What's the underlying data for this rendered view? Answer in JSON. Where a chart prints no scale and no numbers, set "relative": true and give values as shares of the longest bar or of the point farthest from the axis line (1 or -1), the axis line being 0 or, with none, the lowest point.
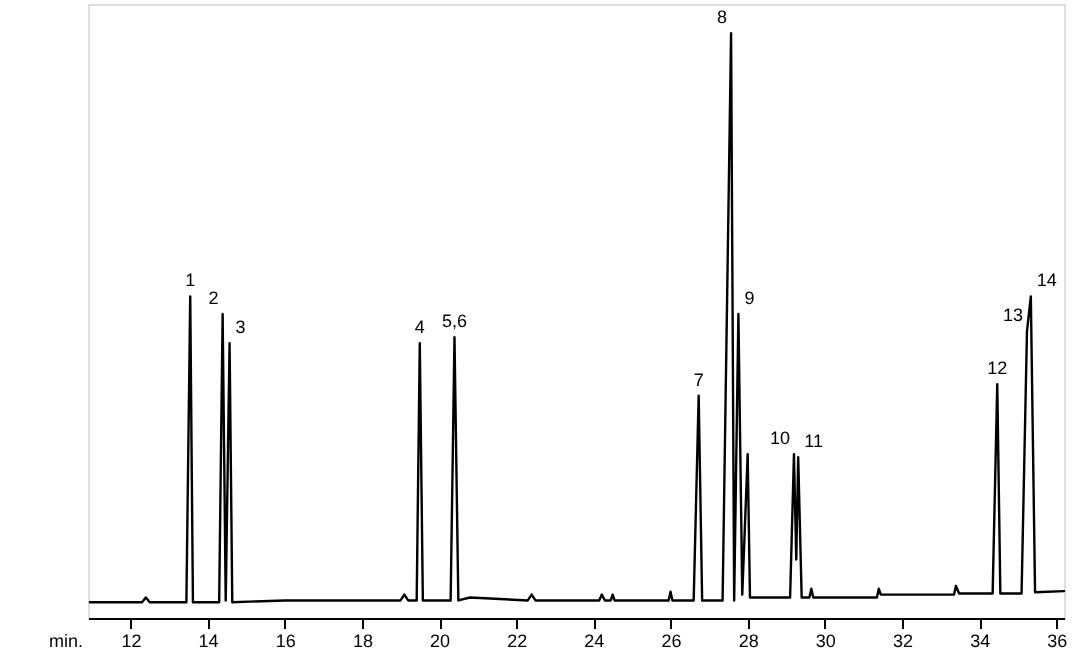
{
  "chart_data": {
    "type": "line",
    "relative": true,
    "xlabel": "min.",
    "xlim": [
      10.9,
      36.2
    ],
    "xticks": [
      12,
      14,
      16,
      18,
      20,
      22,
      24,
      26,
      28,
      30,
      32,
      34,
      36
    ],
    "tick_labels": "x",
    "grid": false,
    "marker": "none",
    "line_style": "solid",
    "series": [
      {
        "color": "#000000",
        "x": [
          10.95,
          12.3,
          12.4,
          12.5,
          13.45,
          13.55,
          13.62,
          14.3,
          14.39,
          14.47,
          14.57,
          14.64,
          16.0,
          19.0,
          19.1,
          19.2,
          19.42,
          19.5,
          19.58,
          20.3,
          20.4,
          20.5,
          20.8,
          22.3,
          22.4,
          22.5,
          24.15,
          24.22,
          24.3,
          24.45,
          24.5,
          24.55,
          25.95,
          26.0,
          26.05,
          26.6,
          26.73,
          26.82,
          27.35,
          27.57,
          27.65,
          27.76,
          27.86,
          28.0,
          28.06,
          29.1,
          29.2,
          29.26,
          29.31,
          29.4,
          29.6,
          29.65,
          29.7,
          31.35,
          31.4,
          31.45,
          33.35,
          33.4,
          33.48,
          34.35,
          34.47,
          34.55,
          35.1,
          35.24,
          35.34,
          35.45,
          36.2
        ],
        "values": [
          0.027,
          0.027,
          0.035,
          0.027,
          0.027,
          0.55,
          0.027,
          0.027,
          0.52,
          0.03,
          0.47,
          0.027,
          0.03,
          0.03,
          0.04,
          0.03,
          0.03,
          0.47,
          0.03,
          0.03,
          0.48,
          0.03,
          0.035,
          0.03,
          0.04,
          0.03,
          0.03,
          0.04,
          0.03,
          0.03,
          0.04,
          0.03,
          0.03,
          0.045,
          0.03,
          0.03,
          0.38,
          0.03,
          0.03,
          1.0,
          0.03,
          0.52,
          0.04,
          0.28,
          0.035,
          0.035,
          0.28,
          0.1,
          0.275,
          0.035,
          0.035,
          0.05,
          0.035,
          0.035,
          0.05,
          0.04,
          0.04,
          0.055,
          0.042,
          0.042,
          0.4,
          0.042,
          0.042,
          0.49,
          0.55,
          0.044,
          0.046
        ]
      }
    ],
    "annotations": [
      {
        "text": "1",
        "x": 13.55,
        "y": 0.55
      },
      {
        "text": "2",
        "x": 14.39,
        "y": 0.52
      },
      {
        "text": "3",
        "x": 14.57,
        "y": 0.47
      },
      {
        "text": "4",
        "x": 19.5,
        "y": 0.47
      },
      {
        "text": "5,6",
        "x": 20.4,
        "y": 0.48
      },
      {
        "text": "7",
        "x": 26.73,
        "y": 0.38
      },
      {
        "text": "8",
        "x": 27.57,
        "y": 1.0
      },
      {
        "text": "9",
        "x": 27.76,
        "y": 0.52
      },
      {
        "text": "10",
        "x": 29.2,
        "y": 0.28
      },
      {
        "text": "11",
        "x": 29.31,
        "y": 0.275
      },
      {
        "text": "12",
        "x": 34.47,
        "y": 0.4
      },
      {
        "text": "13",
        "x": 35.24,
        "y": 0.49
      },
      {
        "text": "14",
        "x": 35.34,
        "y": 0.55
      }
    ]
  }
}
